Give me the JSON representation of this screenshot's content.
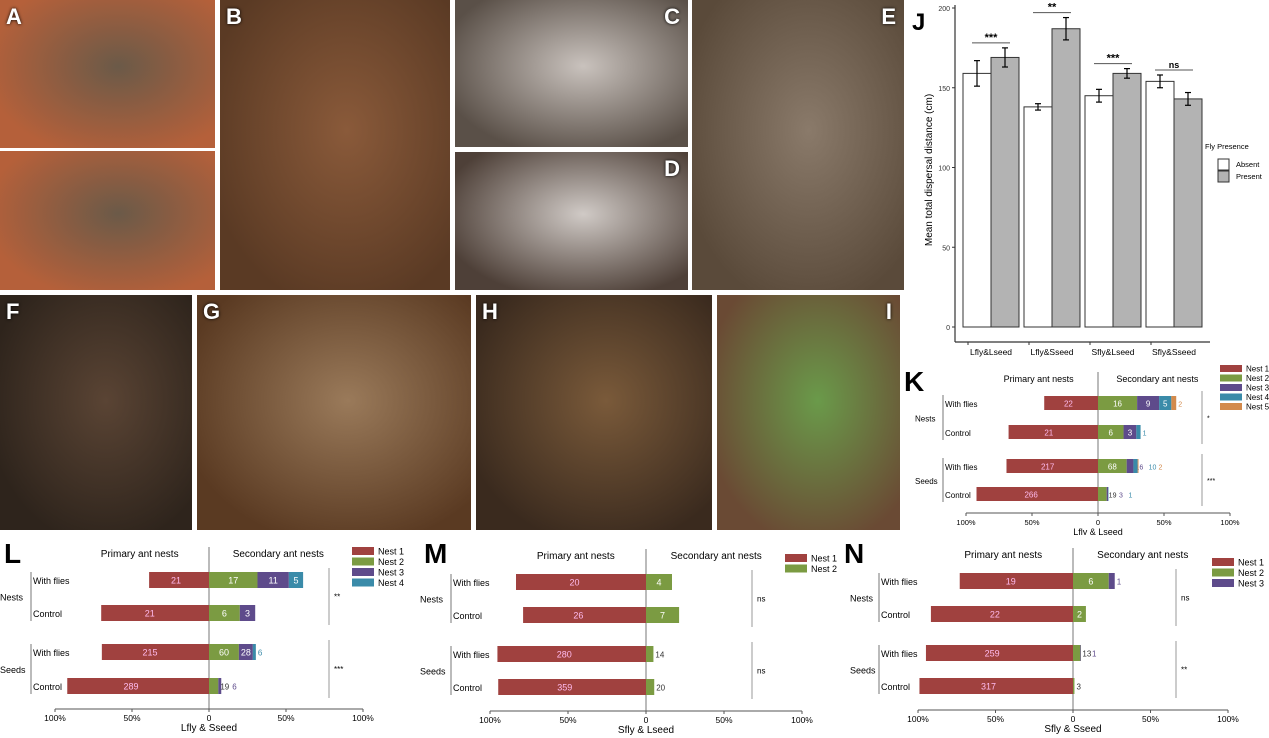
{
  "photos": [
    {
      "label": "A",
      "description_colors": [
        "#6b5a48",
        "#b5603a"
      ]
    },
    {
      "label": "B",
      "description_colors": [
        "#8a5a3a",
        "#5a3a24"
      ]
    },
    {
      "label": "C",
      "description_colors": [
        "#c9c2bd",
        "#5a5048"
      ]
    },
    {
      "label": "D",
      "description_colors": [
        "#d0cac6",
        "#4e4038"
      ]
    },
    {
      "label": "E",
      "description_colors": [
        "#8a7a6a",
        "#5a4a3a"
      ]
    },
    {
      "label": "F",
      "description_colors": [
        "#5a4434",
        "#2e241c"
      ]
    },
    {
      "label": "G",
      "description_colors": [
        "#9a7a5a",
        "#5a3a22"
      ]
    },
    {
      "label": "H",
      "description_colors": [
        "#7a5a3a",
        "#3a2a1e"
      ]
    },
    {
      "label": "I",
      "description_colors": [
        "#6a9a4a",
        "#6a4a34"
      ]
    }
  ],
  "colors": {
    "nest1": "#a0413f",
    "nest2": "#7b9b42",
    "nest3": "#5e4b8b",
    "nest4": "#3a8ba9",
    "nest5": "#d38a4c",
    "absent": "#ffffff",
    "present": "#b3b3b3"
  },
  "chart_data": [
    {
      "label": "J",
      "type": "bar",
      "categories": [
        "Lfly&Lseed",
        "Lfly&Sseed",
        "Sfly&Lseed",
        "Sfly&Sseed"
      ],
      "series": [
        {
          "name": "Absent",
          "values": [
            159,
            138,
            145,
            154
          ],
          "errors": [
            8,
            2,
            4,
            4
          ]
        },
        {
          "name": "Present",
          "values": [
            169,
            187,
            159,
            143
          ],
          "errors": [
            6,
            7,
            3,
            4
          ]
        }
      ],
      "significance": [
        "***",
        "**",
        "***",
        "ns"
      ],
      "ylabel": "Mean total dispersal distance (cm)",
      "xlabel": "",
      "ylim": [
        0,
        200
      ],
      "yticks": [
        0,
        50,
        100,
        150,
        200
      ],
      "legend_title": "Fly Presence",
      "legend_position": "right",
      "grid": false
    },
    {
      "label": "K",
      "type": "bar",
      "orientation": "diverging-stacked-horizontal",
      "xlabel": "Lfly & Lseed",
      "left_header": "Primary ant nests",
      "right_header": "Secondary ant nests",
      "legend": [
        "Nest 1",
        "Nest 2",
        "Nest 3",
        "Nest 4",
        "Nest 5"
      ],
      "xticks": [
        "100%",
        "50%",
        "0",
        "50%",
        "100%"
      ],
      "groups": [
        {
          "name": "Nests",
          "significance": "*",
          "rows": [
            {
              "name": "With flies",
              "counts": [
                22,
                16,
                9,
                5,
                2
              ]
            },
            {
              "name": "Control",
              "counts": [
                21,
                6,
                3,
                1
              ]
            }
          ]
        },
        {
          "name": "Seeds",
          "significance": "***",
          "rows": [
            {
              "name": "With flies",
              "counts": [
                217,
                68,
                16,
                10,
                2
              ]
            },
            {
              "name": "Control",
              "counts": [
                266,
                19,
                3,
                1
              ]
            }
          ]
        }
      ]
    },
    {
      "label": "L",
      "type": "bar",
      "orientation": "diverging-stacked-horizontal",
      "xlabel": "Lfly & Sseed",
      "left_header": "Primary ant nests",
      "right_header": "Secondary ant nests",
      "legend": [
        "Nest 1",
        "Nest 2",
        "Nest 3",
        "Nest 4"
      ],
      "xticks": [
        "100%",
        "50%",
        "0",
        "50%",
        "100%"
      ],
      "groups": [
        {
          "name": "Nests",
          "significance": "**",
          "rows": [
            {
              "name": "With flies",
              "counts": [
                21,
                17,
                11,
                5
              ]
            },
            {
              "name": "Control",
              "counts": [
                21,
                6,
                3
              ]
            }
          ]
        },
        {
          "name": "Seeds",
          "significance": "***",
          "rows": [
            {
              "name": "With flies",
              "counts": [
                215,
                60,
                28,
                6
              ]
            },
            {
              "name": "Control",
              "counts": [
                289,
                19,
                6
              ]
            }
          ]
        }
      ]
    },
    {
      "label": "M",
      "type": "bar",
      "orientation": "diverging-stacked-horizontal",
      "xlabel": "Sfly & Lseed",
      "left_header": "Primary ant nests",
      "right_header": "Secondary ant nests",
      "legend": [
        "Nest 1",
        "Nest 2"
      ],
      "xticks": [
        "100%",
        "50%",
        "0",
        "50%",
        "100%"
      ],
      "groups": [
        {
          "name": "Nests",
          "significance": "ns",
          "rows": [
            {
              "name": "With flies",
              "counts": [
                20,
                4
              ]
            },
            {
              "name": "Control",
              "counts": [
                26,
                7
              ]
            }
          ]
        },
        {
          "name": "Seeds",
          "significance": "ns",
          "rows": [
            {
              "name": "With flies",
              "counts": [
                280,
                14
              ]
            },
            {
              "name": "Control",
              "counts": [
                359,
                20
              ]
            }
          ]
        }
      ]
    },
    {
      "label": "N",
      "type": "bar",
      "orientation": "diverging-stacked-horizontal",
      "xlabel": "Sfly & Sseed",
      "left_header": "Primary ant nests",
      "right_header": "Secondary ant nests",
      "legend": [
        "Nest 1",
        "Nest 2",
        "Nest 3"
      ],
      "xticks": [
        "100%",
        "50%",
        "0",
        "50%",
        "100%"
      ],
      "groups": [
        {
          "name": "Nests",
          "significance": "ns",
          "rows": [
            {
              "name": "With flies",
              "counts": [
                19,
                6,
                1
              ]
            },
            {
              "name": "Control",
              "counts": [
                22,
                2
              ]
            }
          ]
        },
        {
          "name": "Seeds",
          "significance": "**",
          "rows": [
            {
              "name": "With flies",
              "counts": [
                259,
                13,
                1
              ]
            },
            {
              "name": "Control",
              "counts": [
                317,
                3
              ]
            }
          ]
        }
      ]
    }
  ]
}
